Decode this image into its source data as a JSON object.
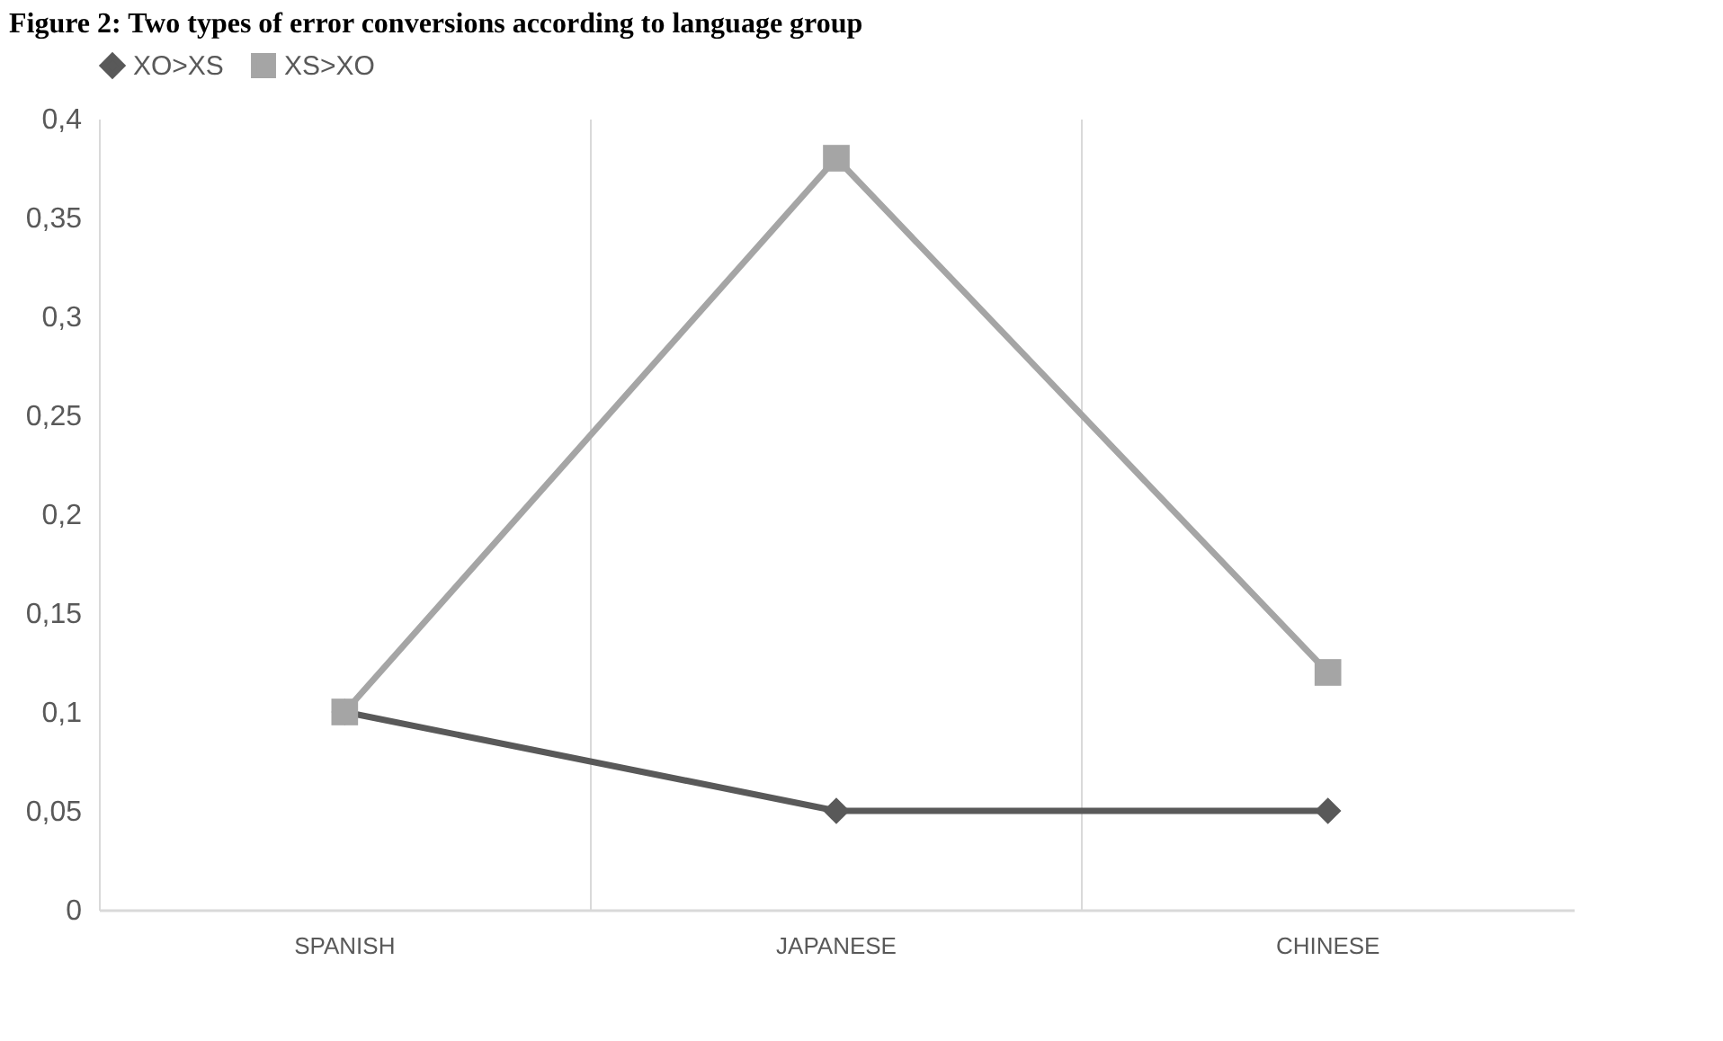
{
  "chart_data": {
    "type": "line",
    "title": "Figure 2: Two types of error conversions according to language group",
    "categories": [
      "SPANISH",
      "JAPANESE",
      "CHINESE"
    ],
    "series": [
      {
        "name": "XO>XS",
        "color": "#595959",
        "marker": "diamond",
        "values": [
          0.1,
          0.05,
          0.05
        ]
      },
      {
        "name": "XS>XO",
        "color": "#a5a5a5",
        "marker": "square",
        "values": [
          0.1,
          0.38,
          0.12
        ]
      }
    ],
    "ylim": [
      0,
      0.4
    ],
    "yticks": [
      0,
      {
        "value": 0.05,
        "label": "0,05"
      },
      {
        "value": 0.1,
        "label": "0,1"
      },
      {
        "value": 0.15,
        "label": "0,15"
      },
      {
        "value": 0.2,
        "label": "0,2"
      },
      {
        "value": 0.25,
        "label": "0,25"
      },
      {
        "value": 0.3,
        "label": "0,3"
      },
      {
        "value": 0.35,
        "label": "0,35"
      },
      {
        "value": 0.4,
        "label": "0,4"
      }
    ],
    "grid": "x",
    "legend": "top",
    "line_style": "solid"
  }
}
